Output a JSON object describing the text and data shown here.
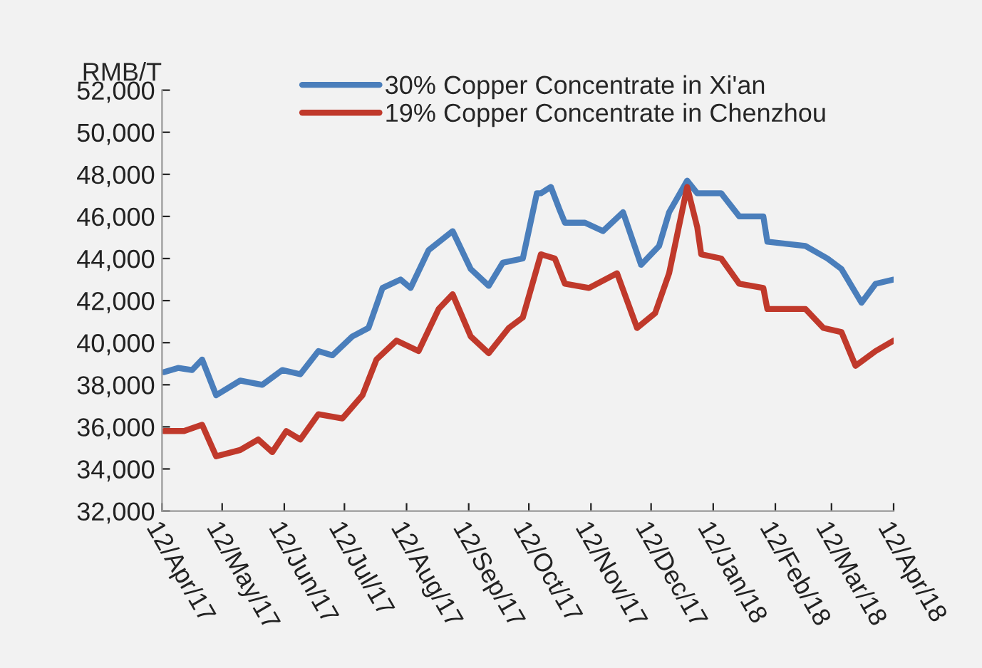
{
  "chart_data": {
    "type": "line",
    "ylabel": "RMB/T",
    "legend": "top",
    "grid": false,
    "marker": "none",
    "line_style": "solid",
    "ylim": [
      32000,
      52000
    ],
    "yticks": [
      {
        "value": 32000,
        "label": "32,000"
      },
      {
        "value": 34000,
        "label": "34,000"
      },
      {
        "value": 36000,
        "label": "36,000"
      },
      {
        "value": 38000,
        "label": "38,000"
      },
      {
        "value": 40000,
        "label": "40,000"
      },
      {
        "value": 42000,
        "label": "42,000"
      },
      {
        "value": 44000,
        "label": "44,000"
      },
      {
        "value": 46000,
        "label": "46,000"
      },
      {
        "value": 48000,
        "label": "48,000"
      },
      {
        "value": 50000,
        "label": "50,000"
      },
      {
        "value": 52000,
        "label": "52,000"
      }
    ],
    "xlim": [
      "2017-04-12",
      "2018-04-12"
    ],
    "xticks": [
      {
        "value": "2017-04-12",
        "label": "12/Apr/17"
      },
      {
        "value": "2017-05-12",
        "label": "12/May/17"
      },
      {
        "value": "2017-06-12",
        "label": "12/Jun/17"
      },
      {
        "value": "2017-07-12",
        "label": "12/Jul/17"
      },
      {
        "value": "2017-08-12",
        "label": "12/Aug/17"
      },
      {
        "value": "2017-09-12",
        "label": "12/Sep/17"
      },
      {
        "value": "2017-10-12",
        "label": "12/Oct/17"
      },
      {
        "value": "2017-11-12",
        "label": "12/Nov/17"
      },
      {
        "value": "2017-12-12",
        "label": "12/Dec/17"
      },
      {
        "value": "2018-01-12",
        "label": "12/Jan/18"
      },
      {
        "value": "2018-02-12",
        "label": "12/Feb/18"
      },
      {
        "value": "2018-03-12",
        "label": "12/Mar/18"
      },
      {
        "value": "2018-04-12",
        "label": "12/Apr/18"
      }
    ],
    "series": [
      {
        "name": "30% Copper Concentrate in Xi'an",
        "color": "#4a7ebb",
        "x": [
          "2017-04-13",
          "2017-04-20",
          "2017-04-27",
          "2017-05-02",
          "2017-05-09",
          "2017-05-21",
          "2017-06-01",
          "2017-06-11",
          "2017-06-20",
          "2017-06-29",
          "2017-07-06",
          "2017-07-16",
          "2017-07-24",
          "2017-07-31",
          "2017-08-09",
          "2017-08-14",
          "2017-08-23",
          "2017-09-04",
          "2017-09-13",
          "2017-09-22",
          "2017-09-29",
          "2017-10-09",
          "2017-10-16",
          "2017-10-18",
          "2017-10-23",
          "2017-10-27",
          "2017-10-30",
          "2017-11-09",
          "2017-11-18",
          "2017-11-28",
          "2017-12-07",
          "2017-12-16",
          "2017-12-21",
          "2017-12-30",
          "2018-01-04",
          "2018-01-16",
          "2018-01-25",
          "2018-02-06",
          "2018-02-08",
          "2018-02-27",
          "2018-03-10",
          "2018-03-17",
          "2018-03-27",
          "2018-04-03",
          "2018-04-12"
        ],
        "values": [
          38600,
          38800,
          38700,
          39200,
          37500,
          38200,
          38000,
          38700,
          38500,
          39600,
          39400,
          40300,
          40700,
          42600,
          43000,
          42600,
          44400,
          45300,
          43500,
          42700,
          43800,
          44000,
          47100,
          47100,
          47400,
          46400,
          45700,
          45700,
          45300,
          46200,
          43700,
          44600,
          46200,
          47700,
          47100,
          47100,
          46000,
          46000,
          44800,
          44600,
          44000,
          43500,
          41900,
          42800,
          43000
        ]
      },
      {
        "name": "19% Copper Concentrate in Chenzhou",
        "color": "#c0392b",
        "x": [
          "2017-04-13",
          "2017-04-23",
          "2017-05-02",
          "2017-05-09",
          "2017-05-21",
          "2017-05-30",
          "2017-06-06",
          "2017-06-13",
          "2017-06-20",
          "2017-06-29",
          "2017-07-11",
          "2017-07-21",
          "2017-07-28",
          "2017-08-07",
          "2017-08-18",
          "2017-08-28",
          "2017-09-04",
          "2017-09-13",
          "2017-09-22",
          "2017-10-02",
          "2017-10-09",
          "2017-10-18",
          "2017-10-25",
          "2017-10-30",
          "2017-11-11",
          "2017-11-25",
          "2017-12-05",
          "2017-12-14",
          "2017-12-21",
          "2017-12-30",
          "2018-01-04",
          "2018-01-06",
          "2018-01-16",
          "2018-01-25",
          "2018-02-06",
          "2018-02-08",
          "2018-02-27",
          "2018-03-08",
          "2018-03-17",
          "2018-03-24",
          "2018-04-03",
          "2018-04-12"
        ],
        "values": [
          35800,
          35800,
          36100,
          34600,
          34900,
          35400,
          34800,
          35800,
          35400,
          36600,
          36400,
          37500,
          39200,
          40100,
          39600,
          41600,
          42300,
          40300,
          39500,
          40700,
          41200,
          44200,
          44000,
          42800,
          42600,
          43300,
          40700,
          41400,
          43300,
          47400,
          45500,
          44200,
          44000,
          42800,
          42600,
          41600,
          41600,
          40700,
          40500,
          38900,
          39600,
          40100
        ]
      }
    ]
  }
}
